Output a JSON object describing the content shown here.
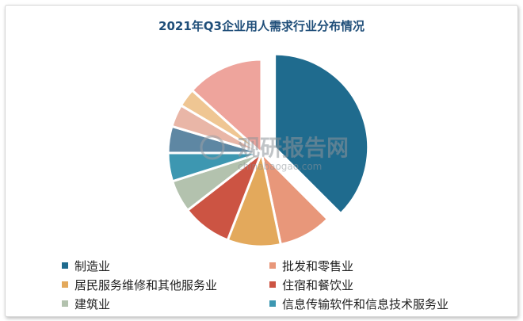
{
  "chart_data": {
    "type": "pie",
    "title": "2021年Q3企业用人需求行业分布情况",
    "exploded_first_slice": true,
    "legend_position": "bottom",
    "slices": [
      {
        "label": "制造业",
        "value": 37.5,
        "color": "#1f6b8e"
      },
      {
        "label": "批发和零售业",
        "value": 9.2,
        "color": "#e8977a"
      },
      {
        "label": "居民服务维修和其他服务业",
        "value": 9.2,
        "color": "#e3a95c"
      },
      {
        "label": "住宿和餐饮业",
        "value": 8.6,
        "color": "#cc5443"
      },
      {
        "label": "建筑业",
        "value": 5.6,
        "color": "#b3c2ae"
      },
      {
        "label": "信息传输软件和信息技术服务业",
        "value": 4.9,
        "color": "#3d97b1"
      },
      {
        "label": "",
        "value": 4.6,
        "color": "#5e87a3"
      },
      {
        "label": "",
        "value": 3.9,
        "color": "#e9b6a7"
      },
      {
        "label": "",
        "value": 3.2,
        "color": "#efc693"
      },
      {
        "label": "",
        "value": 13.3,
        "color": "#eea49c"
      }
    ]
  },
  "watermark": {
    "brand": "观研报告网",
    "url": "chinabaogao.com"
  }
}
